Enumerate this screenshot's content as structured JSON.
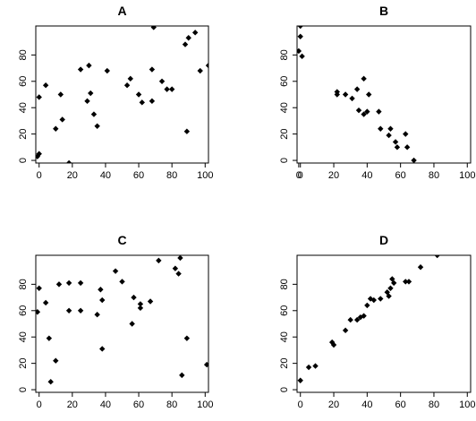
{
  "chart_data": [
    {
      "type": "scatter",
      "title": "A",
      "xlim": [
        -2,
        102
      ],
      "ylim": [
        -2,
        102
      ],
      "x_ticks": [
        "0",
        "20",
        "40",
        "60",
        "80",
        "100"
      ],
      "y_ticks": [
        "0",
        "20",
        "40",
        "60",
        "80"
      ],
      "series": [
        {
          "x": [
            -1,
            0,
            0,
            4,
            10,
            13,
            14,
            18,
            25,
            29,
            30,
            31,
            33,
            35,
            41,
            53,
            55,
            60,
            62,
            68,
            68,
            69,
            74,
            77,
            80,
            88,
            89,
            90,
            94,
            97,
            102
          ],
          "y": [
            3,
            5,
            48,
            57,
            24,
            50,
            31,
            -2,
            69,
            45,
            72,
            51,
            35,
            26,
            68,
            57,
            62,
            50,
            44,
            45,
            69,
            101,
            60,
            54,
            54,
            88,
            22,
            93,
            97,
            68,
            72
          ]
        }
      ]
    },
    {
      "type": "scatter",
      "title": "B",
      "xlim": [
        -2,
        102
      ],
      "ylim": [
        -2,
        102
      ],
      "x_ticks": [
        "0",
        "0",
        "20",
        "40",
        "60",
        "80",
        "100"
      ],
      "y_ticks": [
        "0",
        "20",
        "40",
        "60",
        "80"
      ],
      "series": [
        {
          "x": [
            -1,
            0,
            0,
            1,
            22,
            22,
            27,
            31,
            34,
            35,
            38,
            38,
            40,
            41,
            47,
            48,
            53,
            54,
            57,
            58,
            63,
            64,
            68
          ],
          "y": [
            83,
            102,
            94,
            79,
            50,
            52,
            50,
            47,
            54,
            38,
            62,
            35,
            37,
            50,
            37,
            24,
            19,
            24,
            14,
            10,
            20,
            10,
            0
          ]
        }
      ]
    },
    {
      "type": "scatter",
      "title": "C",
      "xlim": [
        -2,
        102
      ],
      "ylim": [
        -2,
        102
      ],
      "x_ticks": [
        "0",
        "20",
        "40",
        "60",
        "80",
        "100"
      ],
      "y_ticks": [
        "0",
        "20",
        "40",
        "60",
        "80"
      ],
      "series": [
        {
          "x": [
            -1,
            0,
            4,
            6,
            7,
            10,
            12,
            18,
            18,
            25,
            25,
            35,
            37,
            38,
            38,
            46,
            50,
            56,
            57,
            61,
            61,
            67,
            72,
            82,
            84,
            85,
            86,
            89,
            101
          ],
          "y": [
            59,
            77,
            66,
            39,
            6,
            22,
            80,
            81,
            60,
            81,
            60,
            57,
            76,
            31,
            68,
            90,
            82,
            50,
            70,
            65,
            62,
            67,
            98,
            92,
            88,
            100,
            11,
            39,
            19
          ]
        }
      ]
    },
    {
      "type": "scatter",
      "title": "D",
      "xlim": [
        -2,
        102
      ],
      "ylim": [
        -2,
        102
      ],
      "x_ticks": [
        "0",
        "20",
        "40",
        "60",
        "80",
        "100"
      ],
      "y_ticks": [
        "0",
        "20",
        "40",
        "60",
        "80"
      ],
      "series": [
        {
          "x": [
            0,
            5,
            9,
            19,
            20,
            27,
            30,
            34,
            36,
            38,
            40,
            42,
            44,
            48,
            52,
            53,
            54,
            55,
            56,
            63,
            65,
            72,
            82
          ],
          "y": [
            7,
            17,
            18,
            36,
            34,
            45,
            53,
            53,
            55,
            56,
            64,
            69,
            68,
            69,
            74,
            71,
            77,
            84,
            81,
            82,
            82,
            93,
            102
          ]
        }
      ]
    }
  ]
}
